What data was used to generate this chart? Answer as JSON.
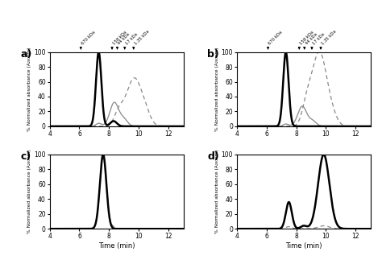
{
  "marker_times": [
    6.1,
    8.2,
    8.55,
    9.05,
    9.65
  ],
  "marker_labels": [
    "670 kDa",
    "158 kDa",
    "44 kDa",
    "17 kDa",
    "1.35 kDa"
  ],
  "xlim": [
    4,
    13
  ],
  "ylim": [
    0,
    100
  ],
  "xticks": [
    4,
    6,
    8,
    10,
    12
  ],
  "yticks": [
    0,
    20,
    40,
    60,
    80,
    100
  ],
  "xlabel": "Time (min)",
  "ylabel": "% Normalized absorbance (A₂₈₀nm)",
  "panel_labels": [
    "a)",
    "b)",
    "c)",
    "d)"
  ],
  "figsize": [
    4.74,
    3.23
  ],
  "dpi": 100
}
